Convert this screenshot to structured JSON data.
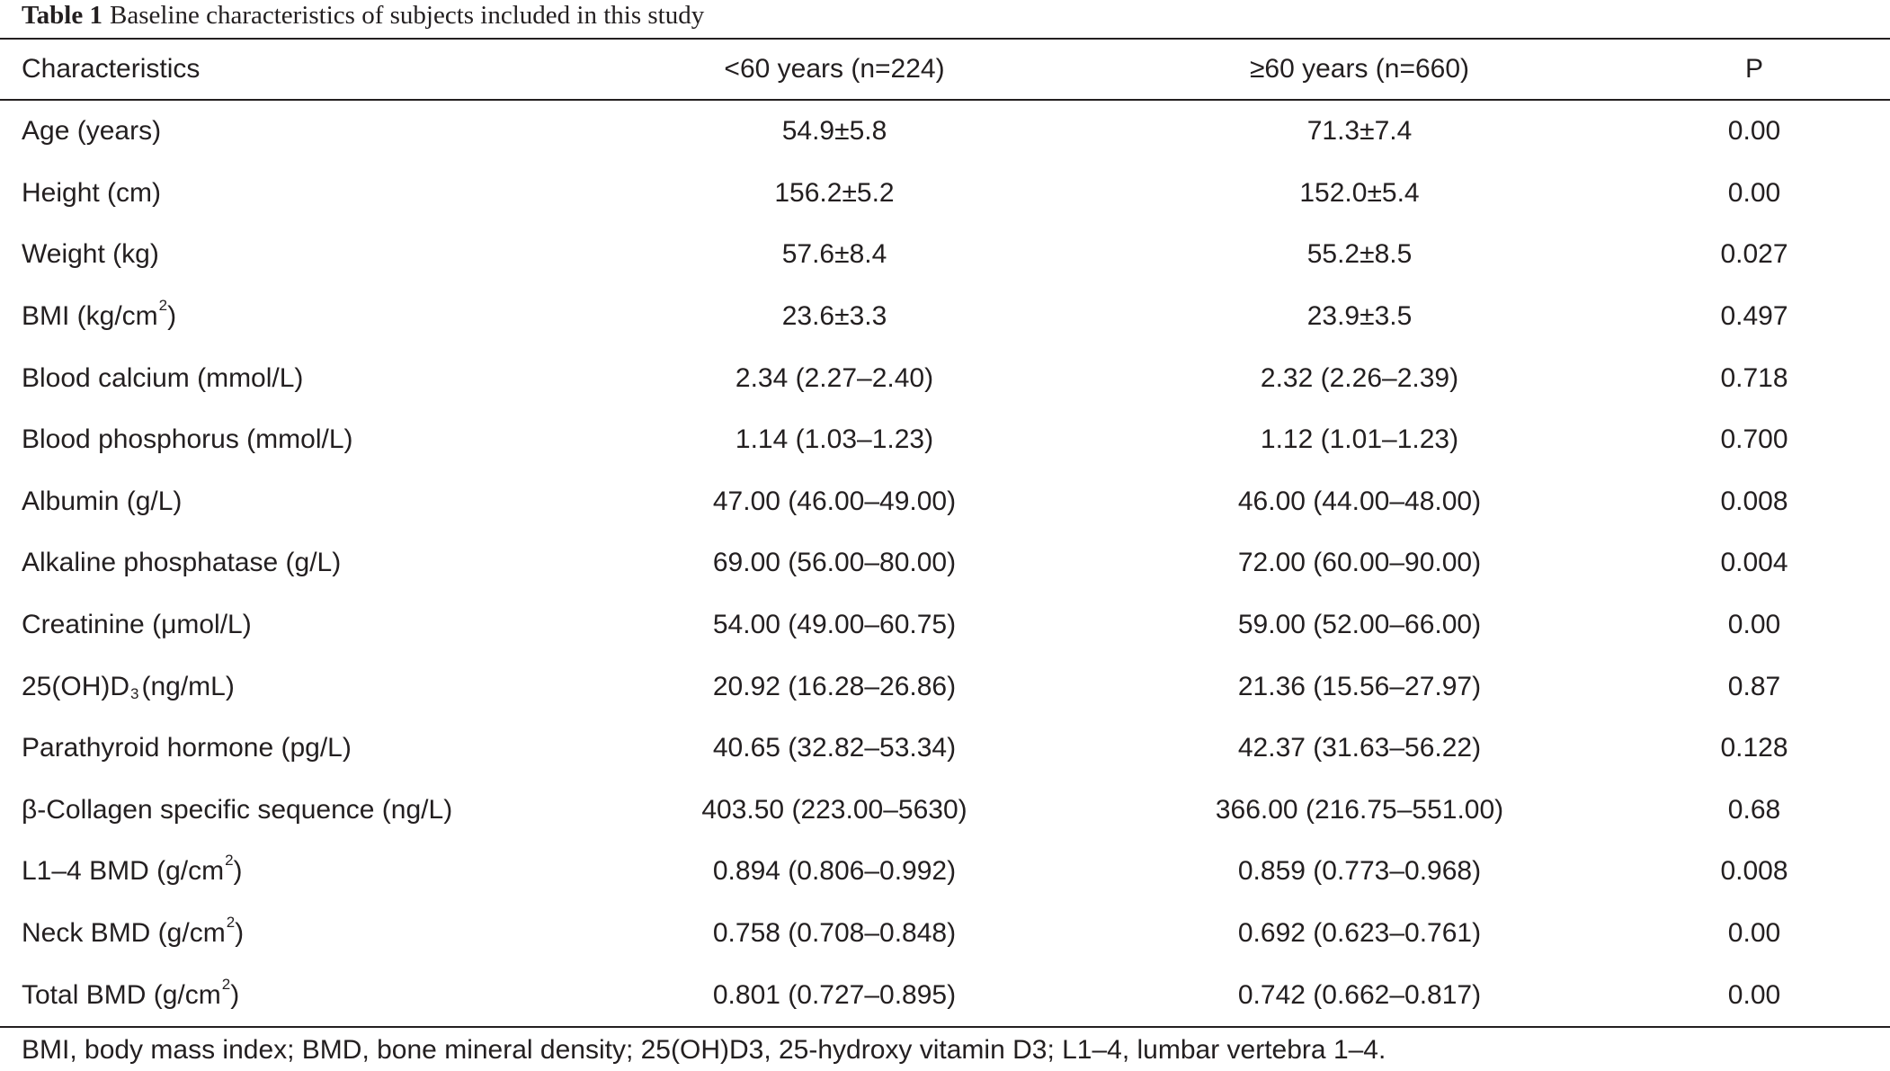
{
  "title": {
    "label": "Table 1",
    "caption": "Baseline characteristics of subjects included in this study"
  },
  "table": {
    "headers": [
      "Characteristics",
      "<60 years (n=224)",
      "≥60 years (n=660)",
      "P"
    ],
    "rows": [
      {
        "label": "Age (years)",
        "young": "54.9±5.8",
        "old": "71.3±7.4",
        "p": "0.00"
      },
      {
        "label": "Height (cm)",
        "young": "156.2±5.2",
        "old": "152.0±5.4",
        "p": "0.00"
      },
      {
        "label": "Weight (kg)",
        "young": "57.6±8.4",
        "old": "55.2±8.5",
        "p": "0.027"
      },
      {
        "label": "BMI (kg/cm",
        "sup": "2",
        "tail": ")",
        "young": "23.6±3.3",
        "old": "23.9±3.5",
        "p": "0.497"
      },
      {
        "label": "Blood calcium (mmol/L)",
        "young": "2.34 (2.27–2.40)",
        "old": "2.32 (2.26–2.39)",
        "p": "0.718"
      },
      {
        "label": "Blood phosphorus (mmol/L)",
        "young": "1.14 (1.03–1.23)",
        "old": "1.12 (1.01–1.23)",
        "p": "0.700"
      },
      {
        "label": "Albumin (g/L)",
        "young": "47.00 (46.00–49.00)",
        "old": "46.00 (44.00–48.00)",
        "p": "0.008"
      },
      {
        "label": "Alkaline phosphatase (g/L)",
        "young": "69.00 (56.00–80.00)",
        "old": "72.00 (60.00–90.00)",
        "p": "0.004"
      },
      {
        "label": "Creatinine (μmol/L)",
        "young": "54.00 (49.00–60.75)",
        "old": "59.00 (52.00–66.00)",
        "p": "0.00"
      },
      {
        "label": "25(OH)D",
        "sub": "3",
        "tail": "(ng/mL)",
        "young": "20.92 (16.28–26.86)",
        "old": "21.36 (15.56–27.97)",
        "p": "0.87"
      },
      {
        "label": "Parathyroid hormone (pg/L)",
        "young": "40.65 (32.82–53.34)",
        "old": "42.37 (31.63–56.22)",
        "p": "0.128"
      },
      {
        "label": "β-Collagen specific sequence (ng/L)",
        "young": "403.50 (223.00–5630)",
        "old": "366.00 (216.75–551.00)",
        "p": "0.68"
      },
      {
        "label": "L1–4 BMD (g/cm",
        "sup": "2",
        "tail": ")",
        "young": "0.894 (0.806–0.992)",
        "old": "0.859 (0.773–0.968)",
        "p": "0.008"
      },
      {
        "label": "Neck BMD (g/cm",
        "sup": "2",
        "tail": ")",
        "young": "0.758 (0.708–0.848)",
        "old": "0.692 (0.623–0.761)",
        "p": "0.00"
      },
      {
        "label": "Total BMD (g/cm",
        "sup": "2",
        "tail": ")",
        "young": "0.801 (0.727–0.895)",
        "old": "0.742 (0.662–0.817)",
        "p": "0.00"
      }
    ]
  },
  "footnote": "BMI, body mass index; BMD, bone mineral density; 25(OH)D3, 25-hydroxy vitamin D3; L1–4, lumbar vertebra 1–4."
}
